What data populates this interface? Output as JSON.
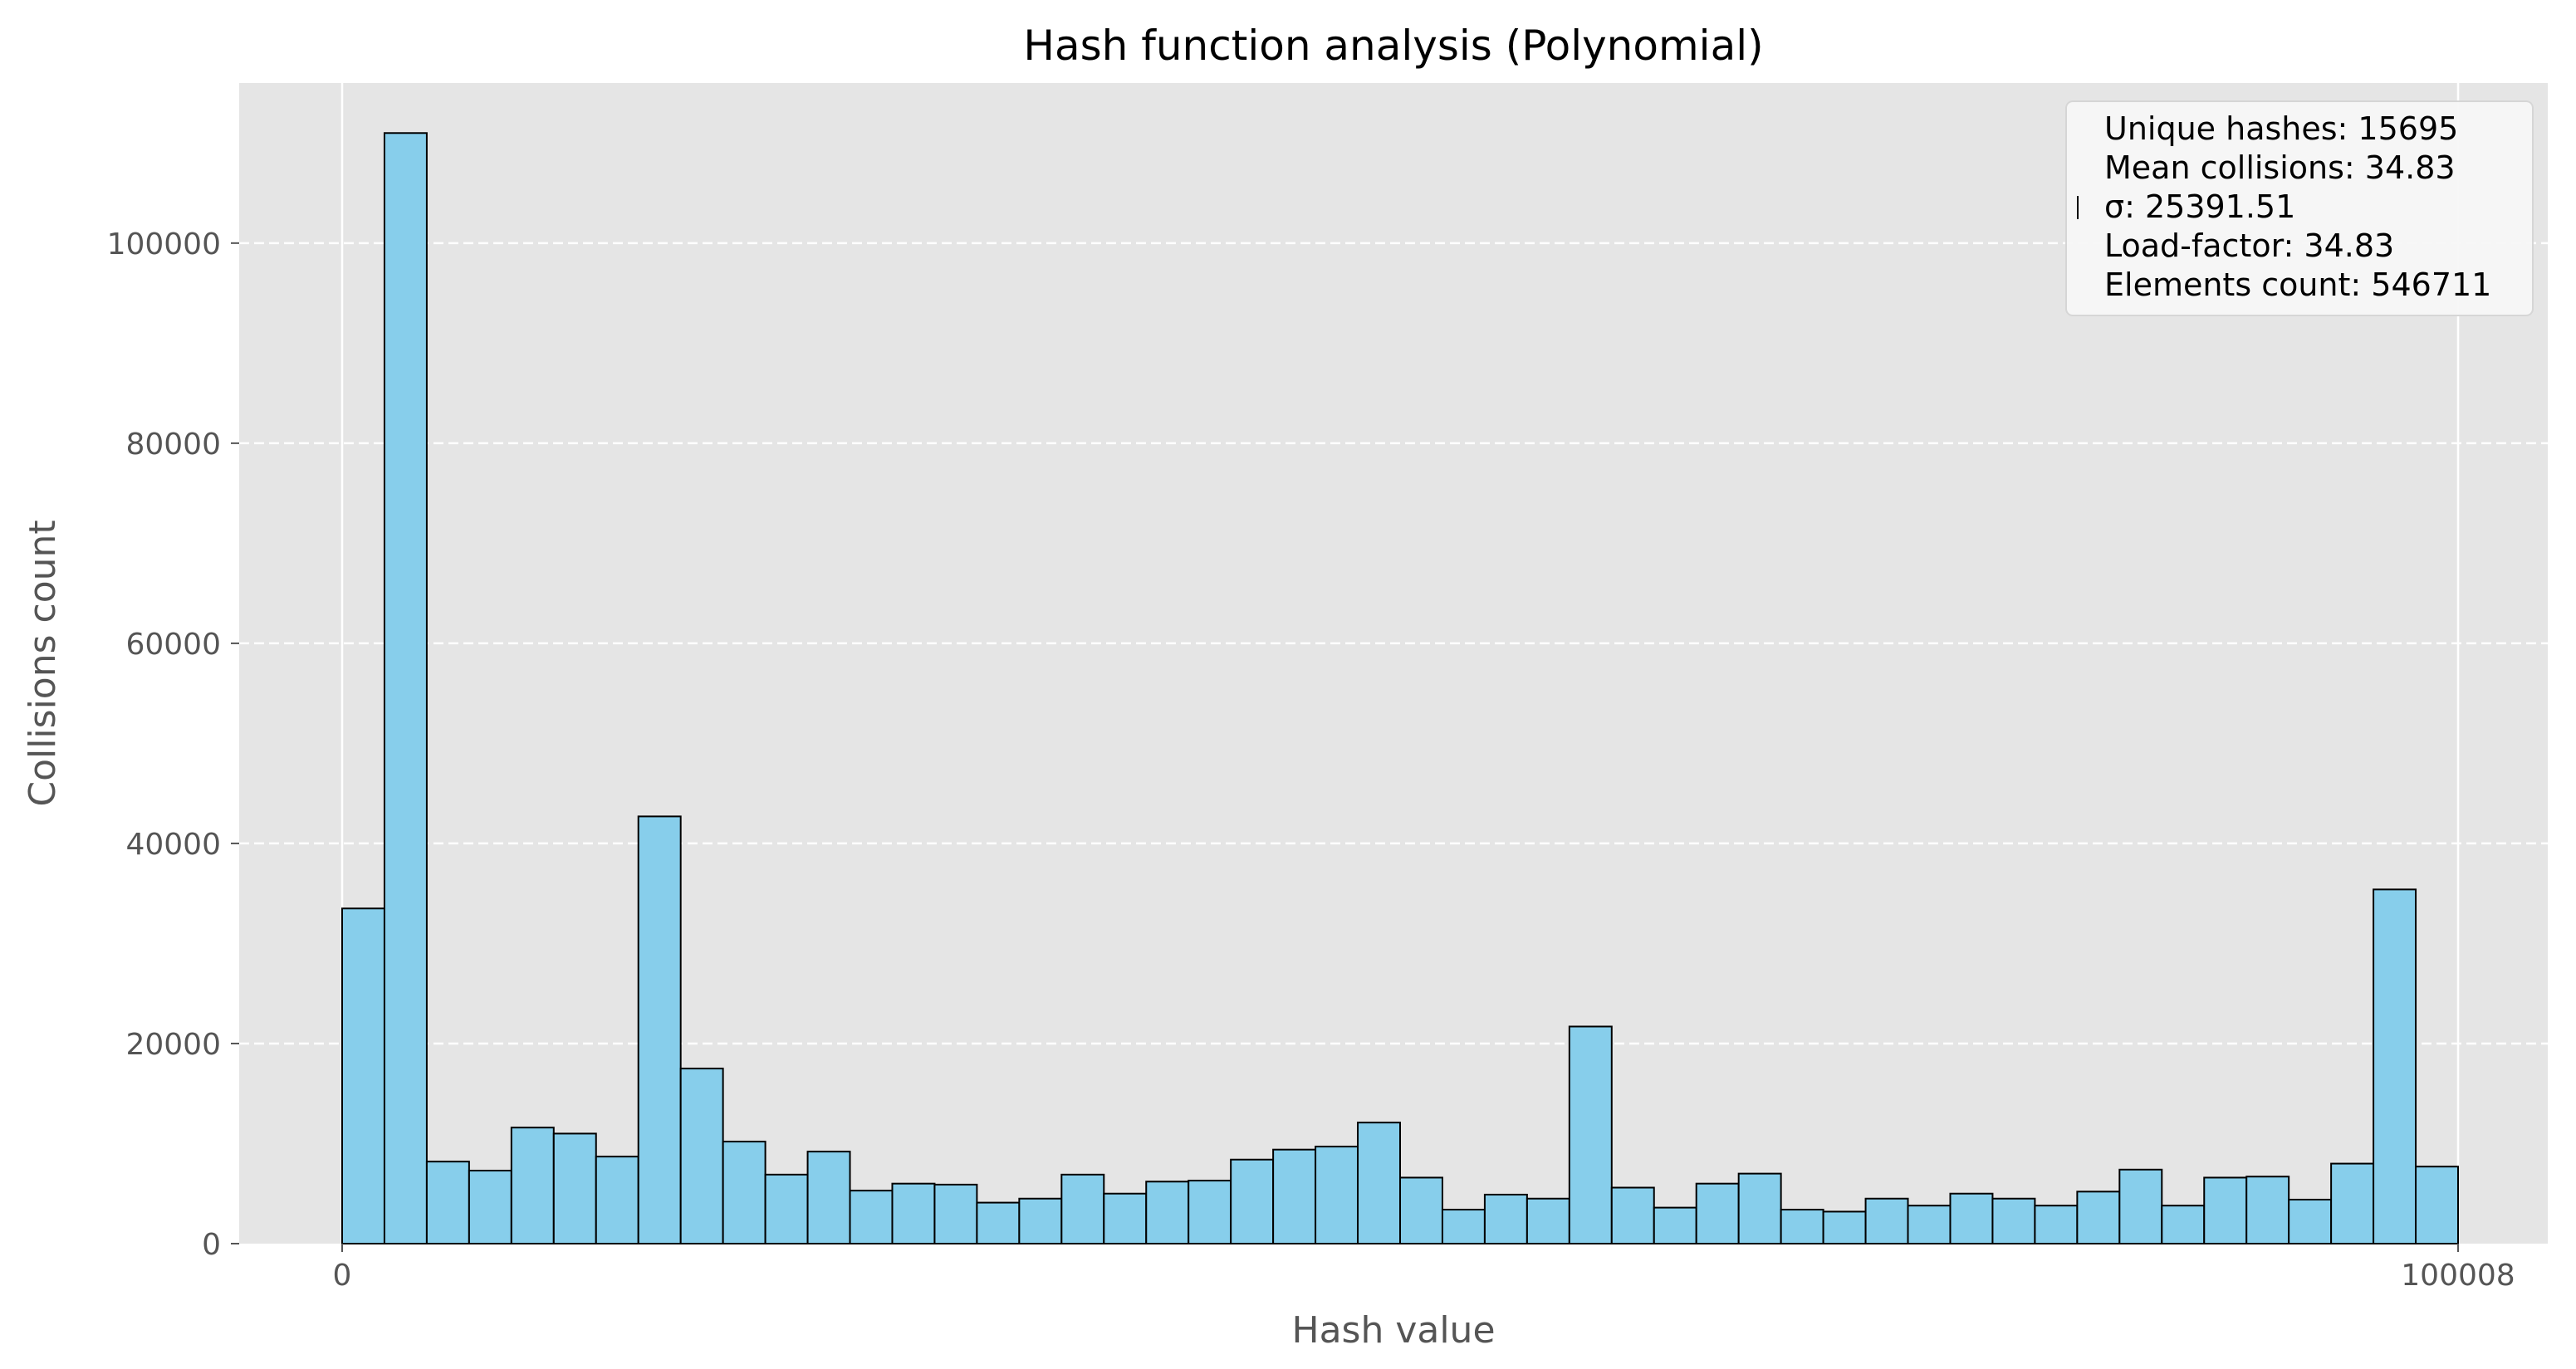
{
  "chart_data": {
    "type": "bar",
    "title": "Hash function analysis (Polynomial)",
    "xlabel": "Hash value",
    "ylabel": "Collisions count",
    "xlim": [
      0,
      100008
    ],
    "ylim": [
      0,
      116000
    ],
    "x_ticks": [
      {
        "value": 0,
        "label": "0"
      },
      {
        "value": 100008,
        "label": "100008"
      }
    ],
    "y_ticks": [
      {
        "value": 0,
        "label": "0"
      },
      {
        "value": 20000,
        "label": "20000"
      },
      {
        "value": 40000,
        "label": "40000"
      },
      {
        "value": 60000,
        "label": "60000"
      },
      {
        "value": 80000,
        "label": "80000"
      },
      {
        "value": 100000,
        "label": "100000"
      }
    ],
    "bins": 50,
    "values": [
      33500,
      111000,
      8200,
      7300,
      11600,
      11000,
      8700,
      42700,
      17500,
      10200,
      6900,
      9200,
      5300,
      6000,
      5900,
      4100,
      4500,
      6900,
      5000,
      6200,
      6300,
      8400,
      9400,
      9700,
      12100,
      6600,
      3400,
      4900,
      4500,
      21700,
      5600,
      3600,
      6000,
      7000,
      3400,
      3200,
      4500,
      3800,
      5000,
      4500,
      3800,
      5200,
      7400,
      3800,
      6600,
      6700,
      4400,
      8000,
      35400,
      7700
    ],
    "bar_color": "#87ceeb",
    "edge_color": "#000000",
    "grid": "y-dashed",
    "legend_position": "top-right",
    "stats": [
      "Unique hashes: 15695",
      "Mean collisions: 34.83",
      "σ: 25391.51",
      "Load-factor: 34.83",
      "Elements count: 546711"
    ]
  }
}
